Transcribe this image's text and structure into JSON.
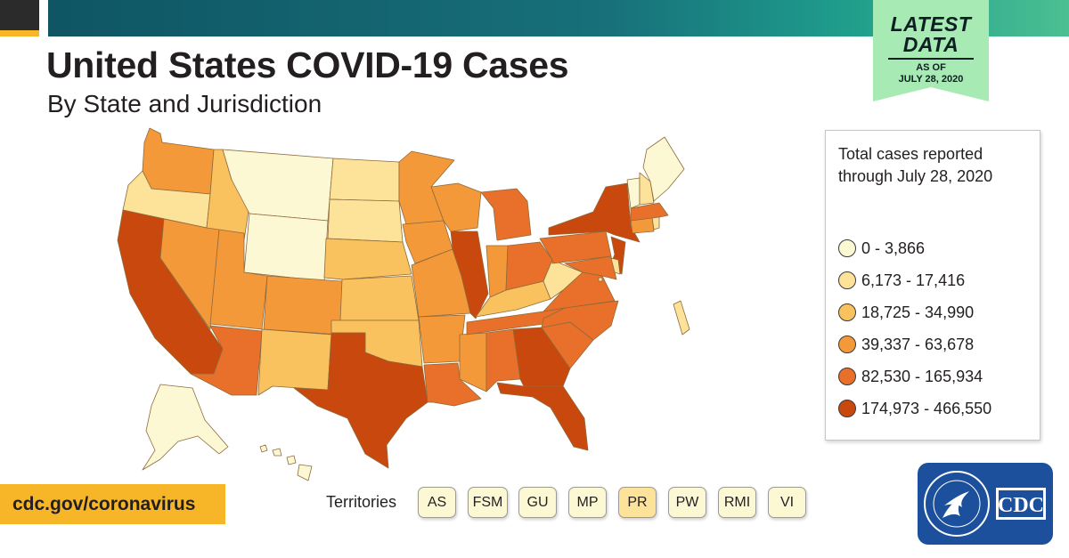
{
  "header": {
    "title": "United States COVID-19 Cases",
    "subtitle": "By State and Jurisdiction"
  },
  "badge": {
    "line1": "LATEST",
    "line2": "DATA",
    "as_of": "AS OF",
    "date": "JULY 28, 2020"
  },
  "legend": {
    "title": "Total cases reported through July 28, 2020",
    "bins": [
      {
        "label": "0 - 3,866",
        "color": "#fdf8d4"
      },
      {
        "label": "6,173 - 17,416",
        "color": "#fde29a"
      },
      {
        "label": "18,725 - 34,990",
        "color": "#fac25e"
      },
      {
        "label": "39,337 - 63,678",
        "color": "#f4993a"
      },
      {
        "label": "82,530 - 165,934",
        "color": "#e8702a"
      },
      {
        "label": "174,973 - 466,550",
        "color": "#c9480e"
      }
    ]
  },
  "footer": {
    "url": "cdc.gov/coronavirus",
    "territories_label": "Territories"
  },
  "territories": [
    {
      "label": "AS",
      "color": "#fdf8d4"
    },
    {
      "label": "FSM",
      "color": "#fdf8d4"
    },
    {
      "label": "GU",
      "color": "#fdf8d4"
    },
    {
      "label": "MP",
      "color": "#fdf8d4"
    },
    {
      "label": "PR",
      "color": "#fde29a"
    },
    {
      "label": "PW",
      "color": "#fdf8d4"
    },
    {
      "label": "RMI",
      "color": "#fdf8d4"
    },
    {
      "label": "VI",
      "color": "#fdf8d4"
    }
  ],
  "logos": {
    "hhs": "HHS seal logo",
    "cdc": "CDC"
  },
  "map": {
    "projection": "contiguous United States with Alaska and Hawaii insets",
    "states": [
      {
        "abbr": "WA",
        "bin": 3
      },
      {
        "abbr": "OR",
        "bin": 1
      },
      {
        "abbr": "CA",
        "bin": 5
      },
      {
        "abbr": "ID",
        "bin": 2
      },
      {
        "abbr": "NV",
        "bin": 3
      },
      {
        "abbr": "MT",
        "bin": 0
      },
      {
        "abbr": "WY",
        "bin": 0
      },
      {
        "abbr": "UT",
        "bin": 3
      },
      {
        "abbr": "AZ",
        "bin": 4
      },
      {
        "abbr": "CO",
        "bin": 3
      },
      {
        "abbr": "NM",
        "bin": 2
      },
      {
        "abbr": "ND",
        "bin": 1
      },
      {
        "abbr": "SD",
        "bin": 1
      },
      {
        "abbr": "NE",
        "bin": 2
      },
      {
        "abbr": "KS",
        "bin": 2
      },
      {
        "abbr": "OK",
        "bin": 2
      },
      {
        "abbr": "TX",
        "bin": 5
      },
      {
        "abbr": "MN",
        "bin": 3
      },
      {
        "abbr": "IA",
        "bin": 3
      },
      {
        "abbr": "MO",
        "bin": 3
      },
      {
        "abbr": "AR",
        "bin": 3
      },
      {
        "abbr": "LA",
        "bin": 4
      },
      {
        "abbr": "WI",
        "bin": 3
      },
      {
        "abbr": "IL",
        "bin": 5
      },
      {
        "abbr": "MS",
        "bin": 3
      },
      {
        "abbr": "MI",
        "bin": 4
      },
      {
        "abbr": "IN",
        "bin": 3
      },
      {
        "abbr": "KY",
        "bin": 2
      },
      {
        "abbr": "TN",
        "bin": 4
      },
      {
        "abbr": "AL",
        "bin": 4
      },
      {
        "abbr": "OH",
        "bin": 4
      },
      {
        "abbr": "GA",
        "bin": 5
      },
      {
        "abbr": "FL",
        "bin": 5
      },
      {
        "abbr": "SC",
        "bin": 4
      },
      {
        "abbr": "NC",
        "bin": 4
      },
      {
        "abbr": "VA",
        "bin": 4
      },
      {
        "abbr": "WV",
        "bin": 1
      },
      {
        "abbr": "PA",
        "bin": 4
      },
      {
        "abbr": "NY",
        "bin": 5
      },
      {
        "abbr": "NJ",
        "bin": 5
      },
      {
        "abbr": "MD",
        "bin": 4
      },
      {
        "abbr": "DE",
        "bin": 1
      },
      {
        "abbr": "CT",
        "bin": 3
      },
      {
        "abbr": "RI",
        "bin": 1
      },
      {
        "abbr": "MA",
        "bin": 4
      },
      {
        "abbr": "VT",
        "bin": 0
      },
      {
        "abbr": "NH",
        "bin": 1
      },
      {
        "abbr": "ME",
        "bin": 0
      },
      {
        "abbr": "AK",
        "bin": 0
      },
      {
        "abbr": "HI",
        "bin": 0
      },
      {
        "abbr": "DC",
        "bin": 1
      }
    ]
  }
}
